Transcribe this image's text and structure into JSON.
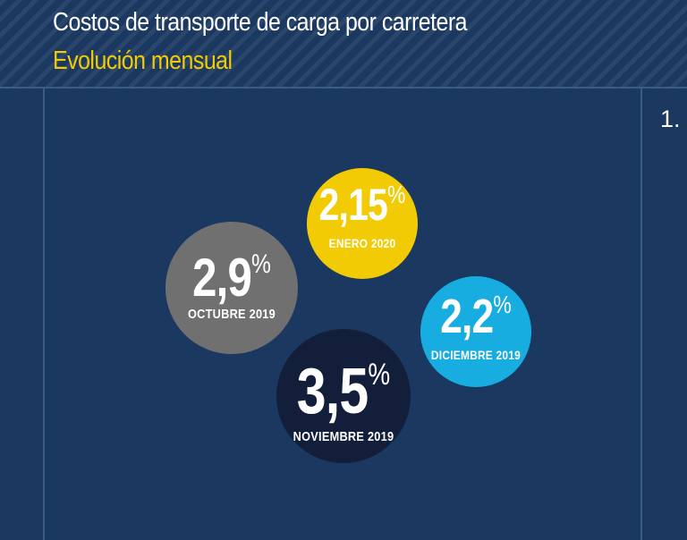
{
  "header": {
    "title": "Costos de transporte de carga por carretera",
    "subtitle": "Evolución mensual"
  },
  "page_number": "1.",
  "colors": {
    "background": "#1a3860",
    "title": "#ffffff",
    "subtitle": "#f2cb05"
  },
  "chart_data": {
    "type": "bubble",
    "title": "Costos de transporte de carga por carretera",
    "subtitle": "Evolución mensual",
    "unit": "%",
    "points": [
      {
        "label": "OCTUBRE 2019",
        "value": "2,9",
        "number": 2.9,
        "color": "#707070"
      },
      {
        "label": "NOVIEMBRE 2019",
        "value": "3,5",
        "number": 3.5,
        "color": "#131f3a"
      },
      {
        "label": "DICIEMBRE 2019",
        "value": "2,2",
        "number": 2.2,
        "color": "#17ade0"
      },
      {
        "label": "ENERO 2020",
        "value": "2,15",
        "number": 2.15,
        "color": "#f2cb05"
      }
    ]
  }
}
